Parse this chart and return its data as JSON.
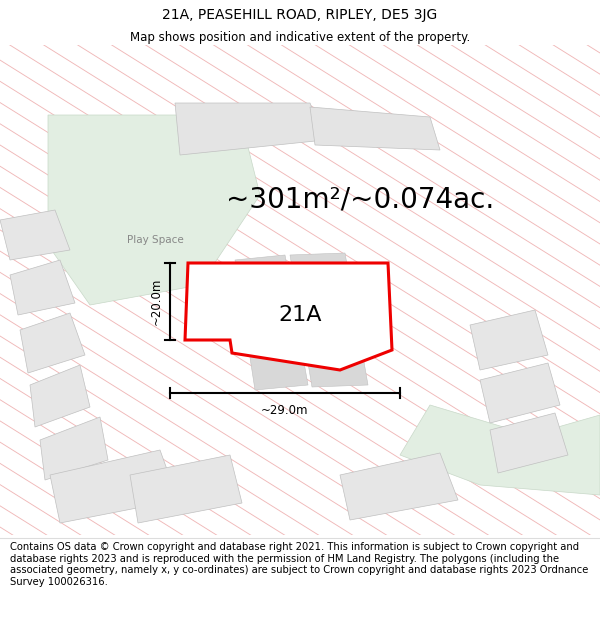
{
  "title_line1": "21A, PEASEHILL ROAD, RIPLEY, DE5 3JG",
  "title_line2": "Map shows position and indicative extent of the property.",
  "area_text": "~301m²/~0.074ac.",
  "plot_label": "21A",
  "dim_width": "~29.0m",
  "dim_height": "~20.0m",
  "play_space_label": "Play Space",
  "footer_text": "Contains OS data © Crown copyright and database right 2021. This information is subject to Crown copyright and database rights 2023 and is reproduced with the permission of HM Land Registry. The polygons (including the associated geometry, namely x, y co-ordinates) are subject to Crown copyright and database rights 2023 Ordnance Survey 100026316.",
  "bg_color": "#ffffff",
  "map_bg": "#ffffff",
  "green_area_color": "#deeede",
  "plot_fill": "#ffffff",
  "plot_edge_color": "#ee0000",
  "hatch_color": "#f0b8b8",
  "gray_block_color": "#e0e0e0",
  "gray_block_edge": "#c8c8c8",
  "title_fontsize": 10,
  "subtitle_fontsize": 8.5,
  "footer_fontsize": 7.2,
  "area_fontsize": 20,
  "label_fontsize": 16
}
